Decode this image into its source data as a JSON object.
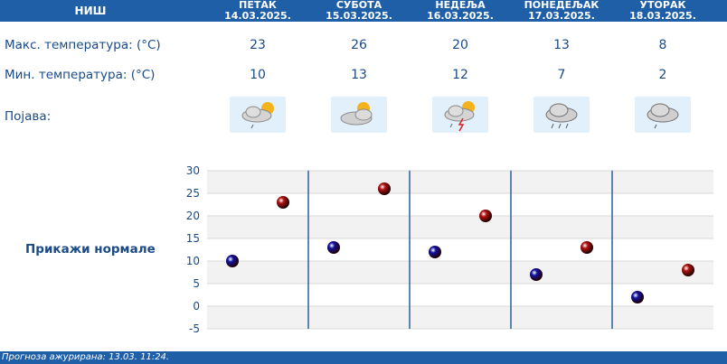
{
  "header": {
    "city": "НИШ",
    "days": [
      {
        "name": "ПЕТАК",
        "date": "14.03.2025."
      },
      {
        "name": "СУБОТА",
        "date": "15.03.2025."
      },
      {
        "name": "НЕДЕЉА",
        "date": "16.03.2025."
      },
      {
        "name": "ПОНЕДЕЉАК",
        "date": "17.03.2025."
      },
      {
        "name": "УТОРАК",
        "date": "18.03.2025."
      }
    ]
  },
  "rows": {
    "max_label": "Макс. температура: (°C)",
    "min_label": "Мин. температура: (°C)",
    "phenomenon_label": "Појава:",
    "max_values": [
      "23",
      "26",
      "20",
      "13",
      "8"
    ],
    "min_values": [
      "10",
      "13",
      "12",
      "7",
      "2"
    ],
    "icons": [
      "partly-cloudy-light-rain-icon",
      "partly-cloudy-icon",
      "partly-cloudy-thunderstorm-icon",
      "cloudy-rain-icon",
      "cloudy-light-rain-icon"
    ]
  },
  "normals_link": "Прикажи нормале",
  "footer": {
    "text": "Прогноза ажурирана:  13.03. 11:24."
  },
  "chart_data": {
    "type": "scatter",
    "categories": [
      "ПЕТАК",
      "СУБОТА",
      "НЕДЕЉА",
      "ПОНЕДЕЉАК",
      "УТОРАК"
    ],
    "series": [
      {
        "values": [
          10,
          13,
          12,
          7,
          2
        ],
        "color": "#1010a0"
      },
      {
        "values": [
          23,
          26,
          20,
          13,
          8
        ],
        "color": "#b01010"
      }
    ],
    "ylim": [
      -5,
      30
    ],
    "yticks": [
      "30",
      "25",
      "20",
      "15",
      "10",
      "5",
      "0",
      "-5"
    ],
    "grid": true
  },
  "colors": {
    "accent": "#1f5fa8",
    "text": "#1a4b87"
  }
}
